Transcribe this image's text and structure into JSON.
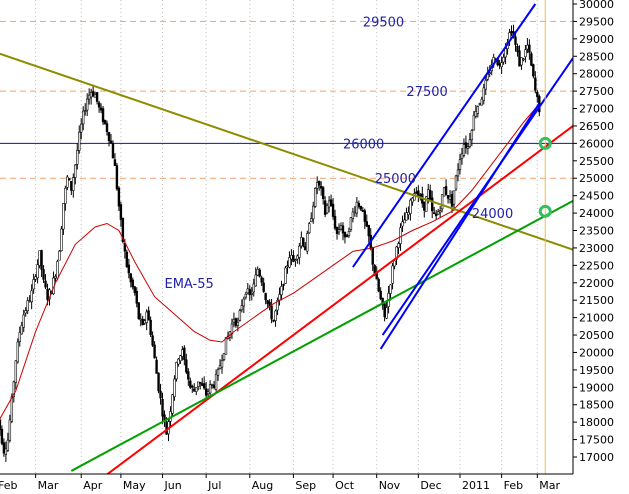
{
  "chart_data": {
    "type": "candlestick",
    "title": "",
    "xlabel": "",
    "ylabel": "",
    "ylim": [
      16500,
      30000
    ],
    "y_ticks": [
      17000,
      17500,
      18000,
      18500,
      19000,
      19500,
      20000,
      20500,
      21000,
      21500,
      22000,
      22500,
      23000,
      23500,
      24000,
      24500,
      25000,
      25500,
      26000,
      26500,
      27000,
      27500,
      28000,
      28500,
      29000,
      29500,
      30000
    ],
    "x_ticks": [
      {
        "label": "Feb",
        "t": 0.0
      },
      {
        "label": "Mar",
        "t": 20
      },
      {
        "label": "Apr",
        "t": 43
      },
      {
        "label": "May",
        "t": 63
      },
      {
        "label": "Jun",
        "t": 84
      },
      {
        "label": "Jul",
        "t": 106
      },
      {
        "label": "Aug",
        "t": 128
      },
      {
        "label": "Sep",
        "t": 150
      },
      {
        "label": "Oct",
        "t": 170
      },
      {
        "label": "Nov",
        "t": 192
      },
      {
        "label": "Dec",
        "t": 213
      },
      {
        "label": "2011",
        "t": 234
      },
      {
        "label": "Feb",
        "t": 255
      },
      {
        "label": "Mar",
        "t": 273
      }
    ],
    "t_range": [
      -2,
      291
    ],
    "price_path": [
      [
        0,
        18300
      ],
      [
        2,
        17800
      ],
      [
        4,
        17200
      ],
      [
        6,
        17500
      ],
      [
        8,
        18600
      ],
      [
        10,
        19800
      ],
      [
        12,
        20600
      ],
      [
        14,
        21100
      ],
      [
        16,
        21400
      ],
      [
        18,
        21700
      ],
      [
        20,
        22300
      ],
      [
        22,
        22800
      ],
      [
        24,
        22000
      ],
      [
        26,
        21600
      ],
      [
        28,
        21800
      ],
      [
        30,
        22300
      ],
      [
        32,
        23000
      ],
      [
        34,
        24300
      ],
      [
        36,
        25000
      ],
      [
        38,
        24700
      ],
      [
        40,
        25400
      ],
      [
        42,
        26200
      ],
      [
        44,
        26800
      ],
      [
        46,
        27300
      ],
      [
        48,
        27500
      ],
      [
        50,
        27400
      ],
      [
        52,
        27000
      ],
      [
        54,
        26700
      ],
      [
        56,
        26400
      ],
      [
        58,
        26000
      ],
      [
        60,
        25300
      ],
      [
        62,
        24200
      ],
      [
        64,
        23200
      ],
      [
        66,
        22500
      ],
      [
        68,
        22000
      ],
      [
        70,
        21700
      ],
      [
        72,
        21000
      ],
      [
        74,
        20700
      ],
      [
        76,
        21200
      ],
      [
        78,
        20600
      ],
      [
        80,
        19800
      ],
      [
        82,
        19000
      ],
      [
        84,
        18300
      ],
      [
        86,
        17700
      ],
      [
        88,
        18400
      ],
      [
        90,
        19300
      ],
      [
        92,
        19900
      ],
      [
        94,
        20000
      ],
      [
        96,
        19500
      ],
      [
        98,
        19000
      ],
      [
        100,
        18900
      ],
      [
        102,
        19200
      ],
      [
        104,
        19000
      ],
      [
        106,
        18800
      ],
      [
        108,
        19000
      ],
      [
        110,
        19100
      ],
      [
        112,
        19400
      ],
      [
        114,
        19900
      ],
      [
        116,
        20300
      ],
      [
        118,
        20600
      ],
      [
        120,
        21000
      ],
      [
        122,
        20800
      ],
      [
        124,
        21400
      ],
      [
        126,
        21800
      ],
      [
        128,
        21600
      ],
      [
        130,
        21900
      ],
      [
        132,
        22400
      ],
      [
        134,
        22100
      ],
      [
        136,
        21600
      ],
      [
        138,
        21200
      ],
      [
        140,
        20900
      ],
      [
        142,
        21400
      ],
      [
        144,
        21800
      ],
      [
        146,
        22300
      ],
      [
        148,
        22800
      ],
      [
        150,
        22600
      ],
      [
        152,
        22900
      ],
      [
        154,
        23300
      ],
      [
        156,
        23000
      ],
      [
        158,
        23600
      ],
      [
        160,
        24300
      ],
      [
        162,
        24900
      ],
      [
        164,
        24600
      ],
      [
        166,
        24000
      ],
      [
        168,
        24400
      ],
      [
        170,
        23900
      ],
      [
        172,
        23400
      ],
      [
        174,
        23700
      ],
      [
        176,
        23200
      ],
      [
        178,
        23600
      ],
      [
        180,
        24000
      ],
      [
        182,
        24300
      ],
      [
        184,
        24200
      ],
      [
        186,
        23700
      ],
      [
        188,
        23300
      ],
      [
        190,
        22600
      ],
      [
        192,
        22000
      ],
      [
        194,
        21500
      ],
      [
        196,
        21000
      ],
      [
        198,
        21700
      ],
      [
        200,
        22400
      ],
      [
        202,
        23000
      ],
      [
        204,
        23500
      ],
      [
        206,
        23800
      ],
      [
        208,
        24000
      ],
      [
        210,
        24500
      ],
      [
        212,
        24700
      ],
      [
        214,
        24400
      ],
      [
        216,
        24200
      ],
      [
        218,
        24600
      ],
      [
        220,
        24000
      ],
      [
        222,
        23900
      ],
      [
        224,
        24200
      ],
      [
        226,
        24700
      ],
      [
        228,
        24500
      ],
      [
        230,
        24300
      ],
      [
        232,
        25000
      ],
      [
        234,
        25600
      ],
      [
        236,
        26000
      ],
      [
        238,
        25900
      ],
      [
        240,
        26500
      ],
      [
        242,
        27000
      ],
      [
        244,
        27200
      ],
      [
        246,
        27500
      ],
      [
        248,
        27900
      ],
      [
        250,
        28300
      ],
      [
        252,
        28500
      ],
      [
        254,
        28200
      ],
      [
        256,
        28600
      ],
      [
        258,
        29000
      ],
      [
        260,
        29300
      ],
      [
        262,
        28800
      ],
      [
        264,
        28300
      ],
      [
        266,
        28500
      ],
      [
        268,
        28800
      ],
      [
        270,
        28200
      ],
      [
        272,
        27500
      ],
      [
        274,
        27000
      ]
    ],
    "ema_path": [
      [
        0,
        17900
      ],
      [
        10,
        18900
      ],
      [
        20,
        20600
      ],
      [
        30,
        22000
      ],
      [
        40,
        23100
      ],
      [
        50,
        23600
      ],
      [
        56,
        23700
      ],
      [
        62,
        23500
      ],
      [
        70,
        22600
      ],
      [
        80,
        21600
      ],
      [
        90,
        21100
      ],
      [
        100,
        20600
      ],
      [
        108,
        20350
      ],
      [
        114,
        20300
      ],
      [
        120,
        20600
      ],
      [
        130,
        21000
      ],
      [
        140,
        21400
      ],
      [
        150,
        21700
      ],
      [
        160,
        22100
      ],
      [
        170,
        22500
      ],
      [
        180,
        22900
      ],
      [
        190,
        23000
      ],
      [
        200,
        23200
      ],
      [
        210,
        23500
      ],
      [
        220,
        23750
      ],
      [
        230,
        24050
      ],
      [
        240,
        24650
      ],
      [
        250,
        25400
      ],
      [
        258,
        26000
      ],
      [
        266,
        26600
      ],
      [
        272,
        27000
      ],
      [
        275,
        27100
      ]
    ],
    "levels": [
      {
        "label": "29500",
        "value": 29500,
        "style": "dashed"
      },
      {
        "label": "27500",
        "value": 27500,
        "style": "dashed"
      },
      {
        "label": "26000",
        "value": 26000,
        "style": "solid"
      },
      {
        "label": "25000",
        "value": 25000,
        "style": "dashed"
      }
    ],
    "trendlines": [
      {
        "name": "olive",
        "points": [
          [
            -2,
            28650
          ],
          [
            291,
            22950
          ]
        ]
      },
      {
        "name": "red",
        "points": [
          [
            56,
            16500
          ],
          [
            291,
            26500
          ]
        ]
      },
      {
        "name": "green",
        "points": [
          [
            38,
            16600
          ],
          [
            291,
            24350
          ]
        ]
      },
      {
        "name": "blue-upper",
        "points": [
          [
            180,
            22450
          ],
          [
            272,
            30000
          ]
        ]
      },
      {
        "name": "blue-mid",
        "points": [
          [
            195,
            20500
          ],
          [
            291,
            28450
          ]
        ]
      },
      {
        "name": "blue-lower",
        "points": [
          [
            194,
            20100
          ],
          [
            274,
            27150
          ]
        ]
      }
    ],
    "vertical_marker_t": 277,
    "circles": [
      {
        "t": 277,
        "value": 26000
      },
      {
        "t": 277,
        "value": 24050
      }
    ],
    "annotations": [
      {
        "text": "29500",
        "t": 185,
        "value": 29500
      },
      {
        "text": "27500",
        "t": 207,
        "value": 27500
      },
      {
        "text": "26000",
        "t": 175,
        "value": 26000
      },
      {
        "text": "25000",
        "t": 191,
        "value": 25000
      },
      {
        "text": "24000",
        "t": 240,
        "value": 24000
      },
      {
        "text": "EMA-55",
        "t": 85,
        "value": 22000
      }
    ]
  },
  "colors": {
    "candles": "#000000",
    "ema": "#cc0000",
    "level_dashed": "#f0a070",
    "level_solid": "#1010b0",
    "olive": "#8c8c00",
    "red": "#ff0000",
    "green": "#00a000",
    "blue": "#0000ff",
    "marker": "#f0c040",
    "circle": "#30c060",
    "annot_blue": "#2222aa",
    "grid": "#c0c0c0"
  }
}
